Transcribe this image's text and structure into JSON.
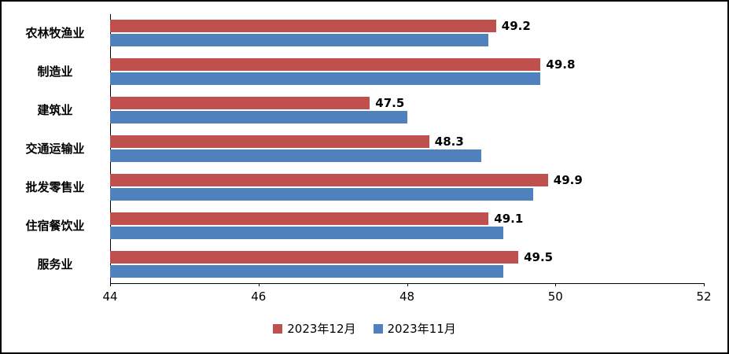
{
  "chart_data": {
    "type": "bar",
    "orientation": "horizontal",
    "title": "",
    "xlabel": "",
    "ylabel": "",
    "categories": [
      "农林牧渔业",
      "制造业",
      "建筑业",
      "交通运输业",
      "批发零售业",
      "住宿餐饮业",
      "服务业"
    ],
    "series": [
      {
        "name": "2023年12月",
        "color": "#C0504D",
        "values": [
          49.2,
          49.8,
          47.5,
          48.3,
          49.9,
          49.1,
          49.5
        ],
        "data_labels": true
      },
      {
        "name": "2023年11月",
        "color": "#4F81BD",
        "values": [
          49.1,
          49.8,
          48.0,
          49.0,
          49.7,
          49.3,
          49.3
        ],
        "data_labels": false
      }
    ],
    "xlim": [
      44,
      52
    ],
    "x_ticks": [
      44,
      46,
      48,
      50,
      52
    ],
    "grid": false,
    "legend_position": "bottom"
  },
  "colors": {
    "dec_series": "#C0504D",
    "nov_series": "#4F81BD",
    "axis": "#000000",
    "border": "#000000",
    "background": "#FFFFFF"
  }
}
